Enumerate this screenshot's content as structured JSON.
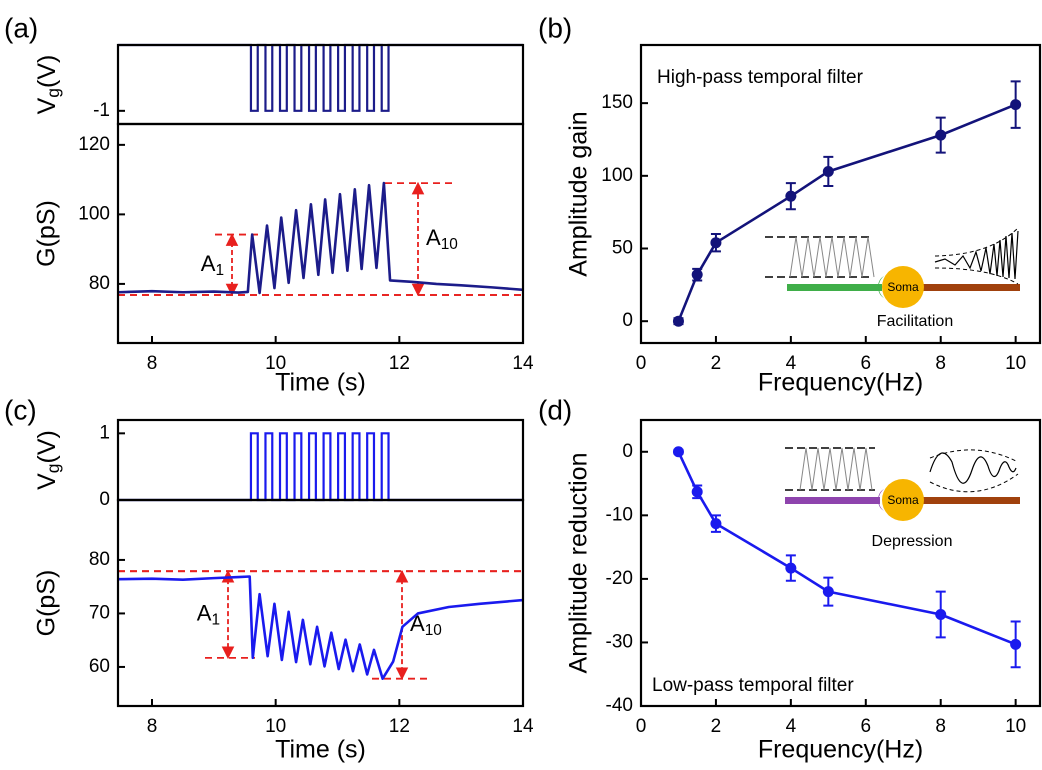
{
  "chart_data": [
    {
      "panel": "(a)",
      "type": "line",
      "xlabel": "Time (s)",
      "ylabel": "G(pS)",
      "xlim": [
        7.45,
        14
      ],
      "xticks": [
        8,
        10,
        12,
        14
      ],
      "ylim": [
        63,
        126
      ],
      "yticks": [
        80,
        100,
        120
      ],
      "gate": {
        "ylabel": [
          "V",
          "g",
          "(V)"
        ],
        "ylim": [
          -1.2,
          0
        ],
        "yticks": [
          -1
        ],
        "color": "#1c1c8a",
        "x": [
          7.45,
          9.6,
          9.6,
          9.71,
          9.71,
          9.835,
          9.835,
          9.945,
          9.945,
          10.07,
          10.07,
          10.18,
          10.18,
          10.305,
          10.305,
          10.415,
          10.415,
          10.54,
          10.54,
          10.65,
          10.65,
          10.775,
          10.775,
          10.885,
          10.885,
          11.01,
          11.01,
          11.12,
          11.12,
          11.245,
          11.245,
          11.355,
          11.355,
          11.48,
          11.48,
          11.59,
          11.59,
          11.715,
          11.715,
          11.825,
          11.825,
          14
        ],
        "values": [
          0,
          0,
          -1,
          -1,
          0,
          0,
          -1,
          -1,
          0,
          0,
          -1,
          -1,
          0,
          0,
          -1,
          -1,
          0,
          0,
          -1,
          -1,
          0,
          0,
          -1,
          -1,
          0,
          0,
          -1,
          -1,
          0,
          0,
          -1,
          -1,
          0,
          0,
          -1,
          -1,
          0,
          0,
          -1,
          -1,
          0,
          0
        ]
      },
      "x": [
        7.45,
        8,
        8.5,
        9,
        9.4,
        9.55,
        9.62,
        9.74,
        9.86,
        9.98,
        10.09,
        10.21,
        10.33,
        10.45,
        10.57,
        10.69,
        10.8,
        10.92,
        11.04,
        11.16,
        11.28,
        11.39,
        11.51,
        11.63,
        11.75,
        11.85,
        12.2,
        12.6,
        13,
        13.5,
        14
      ],
      "series": [
        {
          "color": "#1c1c8a",
          "values": [
            77.6,
            77.9,
            77.6,
            77.8,
            77.5,
            77.7,
            94.2,
            77.4,
            96.8,
            78.8,
            99.1,
            80.3,
            101.2,
            81.7,
            102.9,
            82.6,
            104.3,
            83.2,
            105.8,
            83.8,
            107.2,
            84.3,
            108.4,
            84.6,
            109,
            81,
            80.6,
            80,
            79.6,
            79,
            78.3
          ]
        }
      ],
      "annotations": [
        {
          "text": "A",
          "sub": "1",
          "from": 76.8,
          "to": 94.2
        },
        {
          "text": "A",
          "sub": "10",
          "from": 76.8,
          "to": 109
        }
      ]
    },
    {
      "panel": "(b)",
      "type": "line",
      "markers": true,
      "xlabel": "Frequency(Hz)",
      "ylabel": "Amplitude gain",
      "note": "High-pass temporal filter",
      "xlim": [
        0,
        10.65
      ],
      "xticks": [
        0,
        2,
        4,
        6,
        8,
        10
      ],
      "ylim": [
        -15,
        190
      ],
      "yticks": [
        0,
        50,
        100,
        150
      ],
      "x": [
        1,
        1.5,
        2,
        4,
        5,
        8,
        10
      ],
      "series": [
        {
          "color": "#13137a",
          "values": [
            0,
            32,
            54,
            86,
            103,
            128,
            149
          ],
          "errors": [
            2,
            4,
            6,
            9,
            10,
            12,
            16
          ]
        }
      ],
      "inset": {
        "soma": "Soma",
        "caption": "Facilitation"
      }
    },
    {
      "panel": "(c)",
      "type": "line",
      "xlabel": "Time (s)",
      "ylabel": "G(pS)",
      "xlim": [
        7.45,
        14
      ],
      "xticks": [
        8,
        10,
        12,
        14
      ],
      "ylim": [
        52.7,
        91.2
      ],
      "yticks": [
        60,
        70,
        80
      ],
      "gate": {
        "ylabel": [
          "V",
          "g",
          "(V)"
        ],
        "ylim": [
          0,
          1.2
        ],
        "yticks": [
          0,
          1
        ],
        "color": "#1a1aee",
        "x": [
          7.45,
          9.6,
          9.6,
          9.71,
          9.71,
          9.835,
          9.835,
          9.945,
          9.945,
          10.07,
          10.07,
          10.18,
          10.18,
          10.305,
          10.305,
          10.415,
          10.415,
          10.54,
          10.54,
          10.65,
          10.65,
          10.775,
          10.775,
          10.885,
          10.885,
          11.01,
          11.01,
          11.12,
          11.12,
          11.245,
          11.245,
          11.355,
          11.355,
          11.48,
          11.48,
          11.59,
          11.59,
          11.715,
          11.715,
          11.825,
          11.825,
          14
        ],
        "values": [
          0,
          0,
          1,
          1,
          0,
          0,
          1,
          1,
          0,
          0,
          1,
          1,
          0,
          0,
          1,
          1,
          0,
          0,
          1,
          1,
          0,
          0,
          1,
          1,
          0,
          0,
          1,
          1,
          0,
          0,
          1,
          1,
          0,
          0,
          1,
          1,
          0,
          0,
          1,
          1,
          0,
          0
        ]
      },
      "x": [
        7.45,
        8,
        8.5,
        9,
        9.4,
        9.58,
        9.63,
        9.74,
        9.87,
        9.98,
        10.1,
        10.21,
        10.33,
        10.44,
        10.56,
        10.67,
        10.79,
        10.9,
        11.02,
        11.13,
        11.25,
        11.36,
        11.48,
        11.59,
        11.73,
        11.9,
        12.05,
        12.3,
        12.8,
        13.3,
        13.8,
        14
      ],
      "series": [
        {
          "color": "#1a1aee",
          "values": [
            76.4,
            76.5,
            76.3,
            76.6,
            76.8,
            76.9,
            61.7,
            73.6,
            62,
            71.8,
            61.3,
            70.3,
            60.9,
            68.8,
            60.5,
            67.5,
            60.1,
            66.4,
            59.6,
            65.1,
            59.2,
            64.2,
            58.6,
            63.2,
            57.8,
            61,
            67.5,
            70,
            71.2,
            71.8,
            72.3,
            72.5
          ]
        }
      ],
      "annotations": [
        {
          "text": "A",
          "sub": "1",
          "from": 77.9,
          "to": 61.7
        },
        {
          "text": "A",
          "sub": "10",
          "from": 77.9,
          "to": 57.8
        }
      ]
    },
    {
      "panel": "(d)",
      "type": "line",
      "markers": true,
      "xlabel": "Frequency(Hz)",
      "ylabel": "Amplitude reduction",
      "note": "Low-pass temporal filter",
      "xlim": [
        0,
        10.65
      ],
      "xticks": [
        0,
        2,
        4,
        6,
        8,
        10
      ],
      "ylim": [
        -40,
        5
      ],
      "yticks": [
        -40,
        -30,
        -20,
        -10,
        0
      ],
      "x": [
        1,
        1.5,
        2,
        4,
        5,
        8,
        10
      ],
      "series": [
        {
          "color": "#1a1aee",
          "values": [
            0,
            -6.3,
            -11.3,
            -18.3,
            -22,
            -25.6,
            -30.3
          ],
          "errors": [
            0.3,
            1,
            1.3,
            2,
            2.2,
            3.6,
            3.6
          ]
        }
      ],
      "inset": {
        "soma": "Soma",
        "caption": "Depression"
      }
    }
  ]
}
